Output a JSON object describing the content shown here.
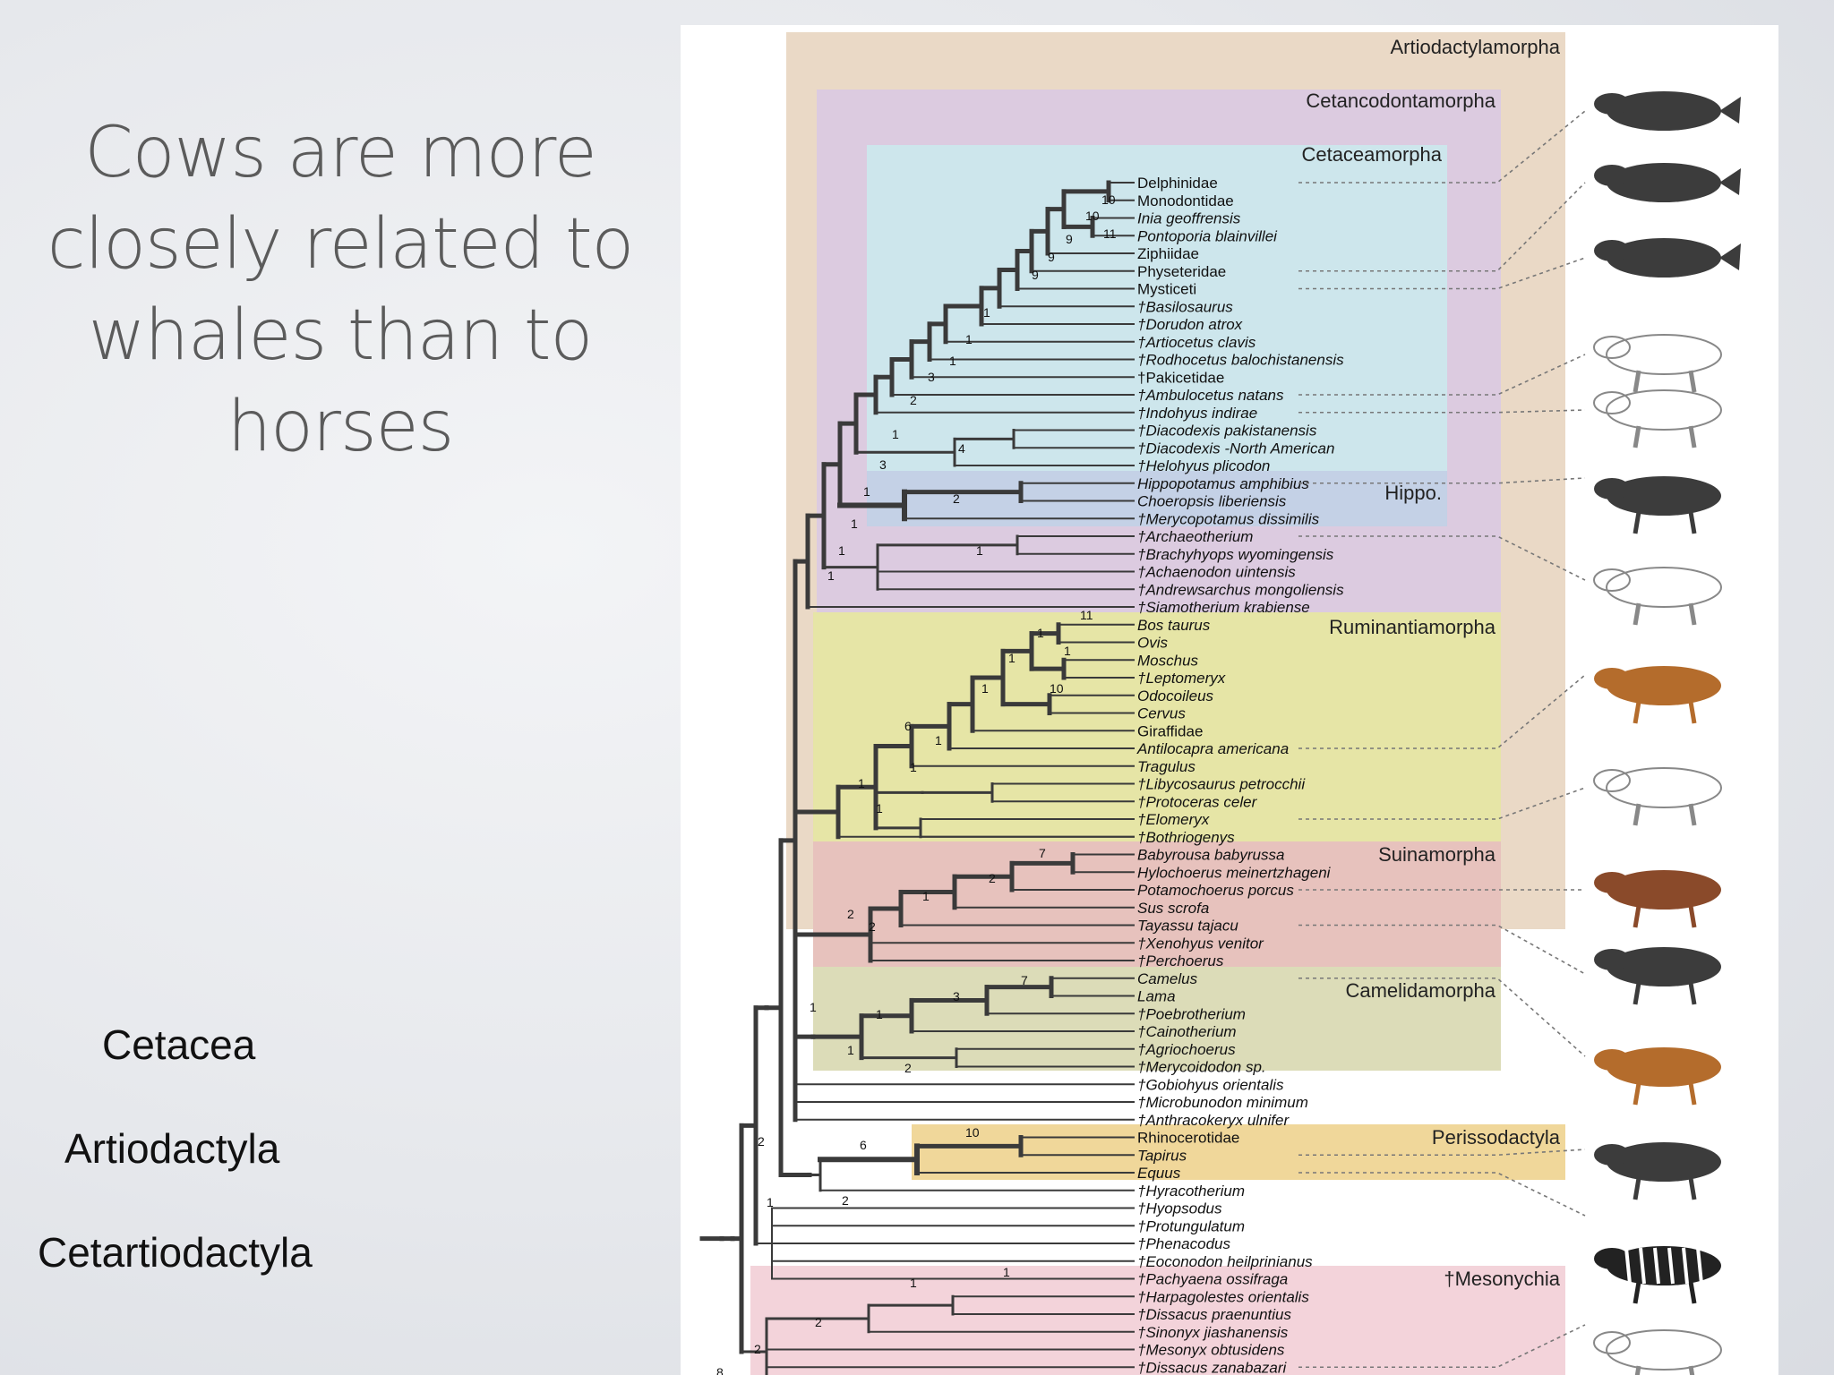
{
  "slide": {
    "title": "Cows are more\nclosely related to\nwhales than to\nhorses",
    "labels": [
      "Cetacea",
      "Artiodactyla",
      "Cetartiodactyla"
    ]
  },
  "figure": {
    "clades": [
      {
        "name": "Artiodactylamorpha",
        "color": "#ead9c6"
      },
      {
        "name": "Cetancodontamorpha",
        "color": "#dccbe0"
      },
      {
        "name": "Cetaceamorpha",
        "color": "#cde6ec"
      },
      {
        "name": "Hippo.",
        "color": "#c4d1e6"
      },
      {
        "name": "Ruminantiamorpha",
        "color": "#e6e5a6"
      },
      {
        "name": "Suinamorpha",
        "color": "#e7c2bd"
      },
      {
        "name": "Camelidamorpha",
        "color": "#dcdcb8"
      },
      {
        "name": "Perissodactyla",
        "color": "#f0d79a"
      },
      {
        "name": "†Mesonychia",
        "color": "#f3d3da"
      }
    ],
    "taxa": [
      {
        "name": "Delphinidae",
        "italic": false
      },
      {
        "name": "Monodontidae",
        "italic": false
      },
      {
        "name": "Inia geoffrensis",
        "italic": true
      },
      {
        "name": "Pontoporia blainvillei",
        "italic": true
      },
      {
        "name": "Ziphiidae",
        "italic": false
      },
      {
        "name": "Physeteridae",
        "italic": false
      },
      {
        "name": "Mysticeti",
        "italic": false
      },
      {
        "name": "†Basilosaurus",
        "italic": true
      },
      {
        "name": "†Dorudon atrox",
        "italic": true
      },
      {
        "name": "†Artiocetus clavis",
        "italic": true
      },
      {
        "name": "†Rodhocetus balochistanensis",
        "italic": true
      },
      {
        "name": "†Pakicetidae",
        "italic": false
      },
      {
        "name": "†Ambulocetus natans",
        "italic": true
      },
      {
        "name": "†Indohyus indirae",
        "italic": true
      },
      {
        "name": "†Diacodexis pakistanensis",
        "italic": true
      },
      {
        "name": "†Diacodexis -North American",
        "italic": true
      },
      {
        "name": "†Helohyus plicodon",
        "italic": true
      },
      {
        "name": "Hippopotamus amphibius",
        "italic": true
      },
      {
        "name": "Choeropsis liberiensis",
        "italic": true
      },
      {
        "name": "†Merycopotamus dissimilis",
        "italic": true
      },
      {
        "name": "†Archaeotherium",
        "italic": true
      },
      {
        "name": "†Brachyhyops wyomingensis",
        "italic": true
      },
      {
        "name": "†Achaenodon uintensis",
        "italic": true
      },
      {
        "name": "†Andrewsarchus mongoliensis",
        "italic": true
      },
      {
        "name": "†Siamotherium krabiense",
        "italic": true
      },
      {
        "name": "Bos taurus",
        "italic": true
      },
      {
        "name": "Ovis",
        "italic": true
      },
      {
        "name": "Moschus",
        "italic": true
      },
      {
        "name": "†Leptomeryx",
        "italic": true
      },
      {
        "name": "Odocoileus",
        "italic": true
      },
      {
        "name": "Cervus",
        "italic": true
      },
      {
        "name": "Giraffidae",
        "italic": false
      },
      {
        "name": "Antilocapra americana",
        "italic": true
      },
      {
        "name": "Tragulus",
        "italic": true
      },
      {
        "name": "†Libycosaurus petrocchii",
        "italic": true
      },
      {
        "name": "†Protoceras celer",
        "italic": true
      },
      {
        "name": "†Elomeryx",
        "italic": true
      },
      {
        "name": "†Bothriogenys",
        "italic": true
      },
      {
        "name": "Babyrousa babyrussa",
        "italic": true
      },
      {
        "name": "Hylochoerus meinertzhageni",
        "italic": true
      },
      {
        "name": "Potamochoerus porcus",
        "italic": true
      },
      {
        "name": "Sus scrofa",
        "italic": true
      },
      {
        "name": "Tayassu tajacu",
        "italic": true
      },
      {
        "name": "†Xenohyus venitor",
        "italic": true
      },
      {
        "name": "†Perchoerus",
        "italic": true
      },
      {
        "name": "Camelus",
        "italic": true
      },
      {
        "name": "Lama",
        "italic": true
      },
      {
        "name": "†Poebrotherium",
        "italic": true
      },
      {
        "name": "†Cainotherium",
        "italic": true
      },
      {
        "name": "†Agriochoerus",
        "italic": true
      },
      {
        "name": "†Merycoidodon sp.",
        "italic": true
      },
      {
        "name": "†Gobiohyus orientalis",
        "italic": true
      },
      {
        "name": "†Microbunodon minimum",
        "italic": true
      },
      {
        "name": "†Anthracokeryx ulnifer",
        "italic": true
      },
      {
        "name": "Rhinocerotidae",
        "italic": false
      },
      {
        "name": "Tapirus",
        "italic": true
      },
      {
        "name": "Equus",
        "italic": true
      },
      {
        "name": "†Hyracotherium",
        "italic": true
      },
      {
        "name": "†Hyopsodus",
        "italic": true
      },
      {
        "name": "†Protungulatum",
        "italic": true
      },
      {
        "name": "†Phenacodus",
        "italic": true
      },
      {
        "name": "†Eoconodon heilprinianus",
        "italic": true
      },
      {
        "name": "†Pachyaena ossifraga",
        "italic": true
      },
      {
        "name": "†Harpagolestes orientalis",
        "italic": true
      },
      {
        "name": "†Dissacus praenuntius",
        "italic": true
      },
      {
        "name": "†Sinonyx jiashanensis",
        "italic": true
      },
      {
        "name": "†Mesonyx obtusidens",
        "italic": true
      },
      {
        "name": "†Dissacus zanabazari",
        "italic": true
      }
    ],
    "support_values": [
      "10",
      "10",
      "11",
      "9",
      "9",
      "9",
      "1",
      "1",
      "1",
      "3",
      "2",
      "1",
      "3",
      "1",
      "4",
      "2",
      "1",
      "1",
      "1",
      "1",
      "11",
      "1",
      "1",
      "1",
      "10",
      "1",
      "6",
      "1",
      "1",
      "1",
      "1",
      "7",
      "2",
      "1",
      "2",
      "2",
      "7",
      "3",
      "1",
      "1",
      "2",
      "1",
      "2",
      "6",
      "10",
      "1",
      "2",
      "1",
      "1",
      "2",
      "2",
      "8"
    ]
  }
}
